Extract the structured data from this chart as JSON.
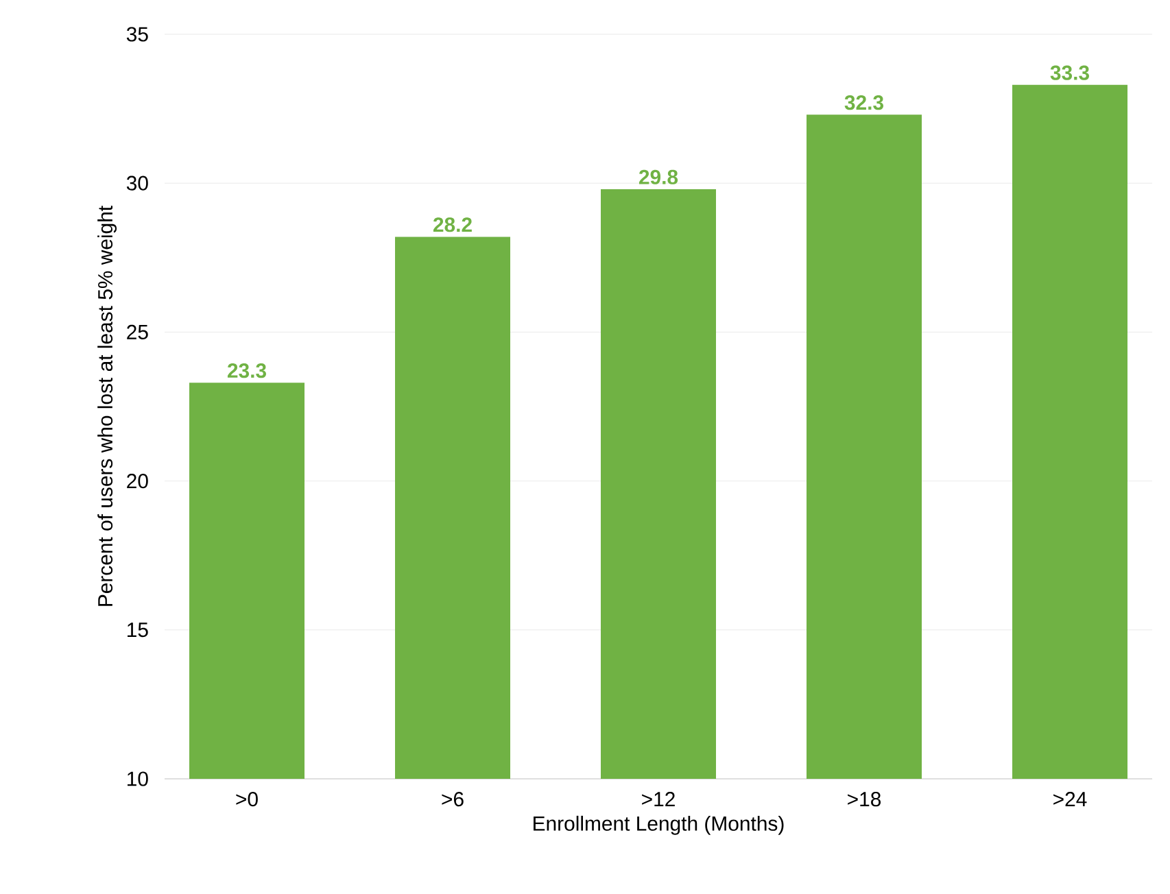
{
  "chart_data": {
    "type": "bar",
    "xlabel": "Enrollment Length (Months)",
    "ylabel": "Percent of users who lost at least 5% weight",
    "categories": [
      ">0",
      ">6",
      ">12",
      ">18",
      ">24"
    ],
    "values": [
      23.3,
      28.2,
      29.8,
      32.3,
      33.3
    ],
    "color": "#70b244",
    "ylim": [
      10,
      35
    ],
    "yticks": [
      10,
      15,
      20,
      25,
      30,
      35
    ],
    "grid": "y",
    "data_labels": true
  }
}
